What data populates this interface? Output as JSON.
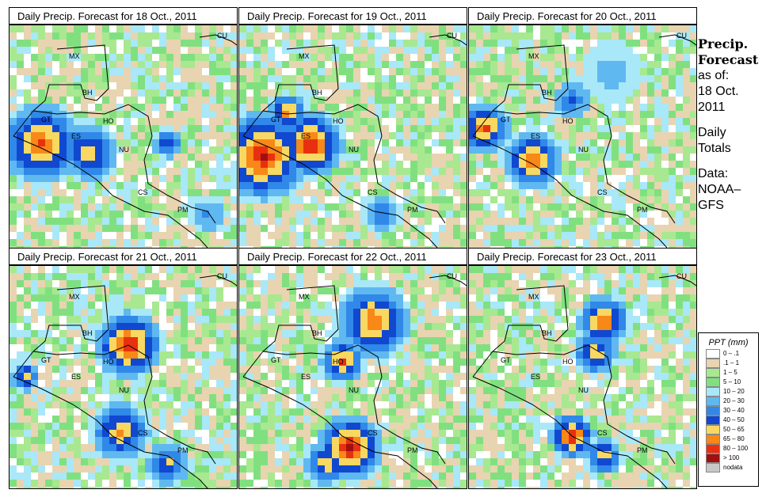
{
  "panels": [
    {
      "title": "Daily Precip. Forecast for  18 Oct., 2011"
    },
    {
      "title": "Daily Precip. Forecast for  19 Oct., 2011"
    },
    {
      "title": "Daily Precip. Forecast for  20 Oct., 2011"
    },
    {
      "title": "Daily Precip. Forecast for  21 Oct., 2011"
    },
    {
      "title": "Daily Precip. Forecast for  22 Oct., 2011"
    },
    {
      "title": "Daily Precip. Forecast for  23 Oct., 2011"
    }
  ],
  "country_labels": [
    "MX",
    "BH",
    "GT",
    "HO",
    "ES",
    "NU",
    "CS",
    "PM",
    "CU"
  ],
  "sidebar": {
    "title_line1": "Precip.",
    "title_line2": "Forecast",
    "as_of": "as of:",
    "date_line1": "18 Oct.",
    "date_line2": "2011",
    "totals_line1": "Daily",
    "totals_line2": "Totals",
    "data_line1": "Data:",
    "data_line2": "NOAA–",
    "data_line3": "GFS"
  },
  "legend": {
    "title": "PPT (mm)",
    "items": [
      {
        "label": "0 – .1",
        "color": "#ffffff"
      },
      {
        "label": ".1 – 1",
        "color": "#e8d4b0"
      },
      {
        "label": "1 – 5",
        "color": "#a8e890"
      },
      {
        "label": "5 – 10",
        "color": "#80e080"
      },
      {
        "label": "10 – 20",
        "color": "#a8e8f8"
      },
      {
        "label": "20 – 30",
        "color": "#60b8f0"
      },
      {
        "label": "30 – 40",
        "color": "#3088e8"
      },
      {
        "label": "40 – 50",
        "color": "#1048d0"
      },
      {
        "label": "50 – 65",
        "color": "#f8d860"
      },
      {
        "label": "65 – 80",
        "color": "#f88818"
      },
      {
        "label": "80 – 100",
        "color": "#e83010"
      },
      {
        "label": "> 100",
        "color": "#a01010"
      },
      {
        "label": "nodata",
        "color": "#c8c8c8"
      }
    ]
  }
}
